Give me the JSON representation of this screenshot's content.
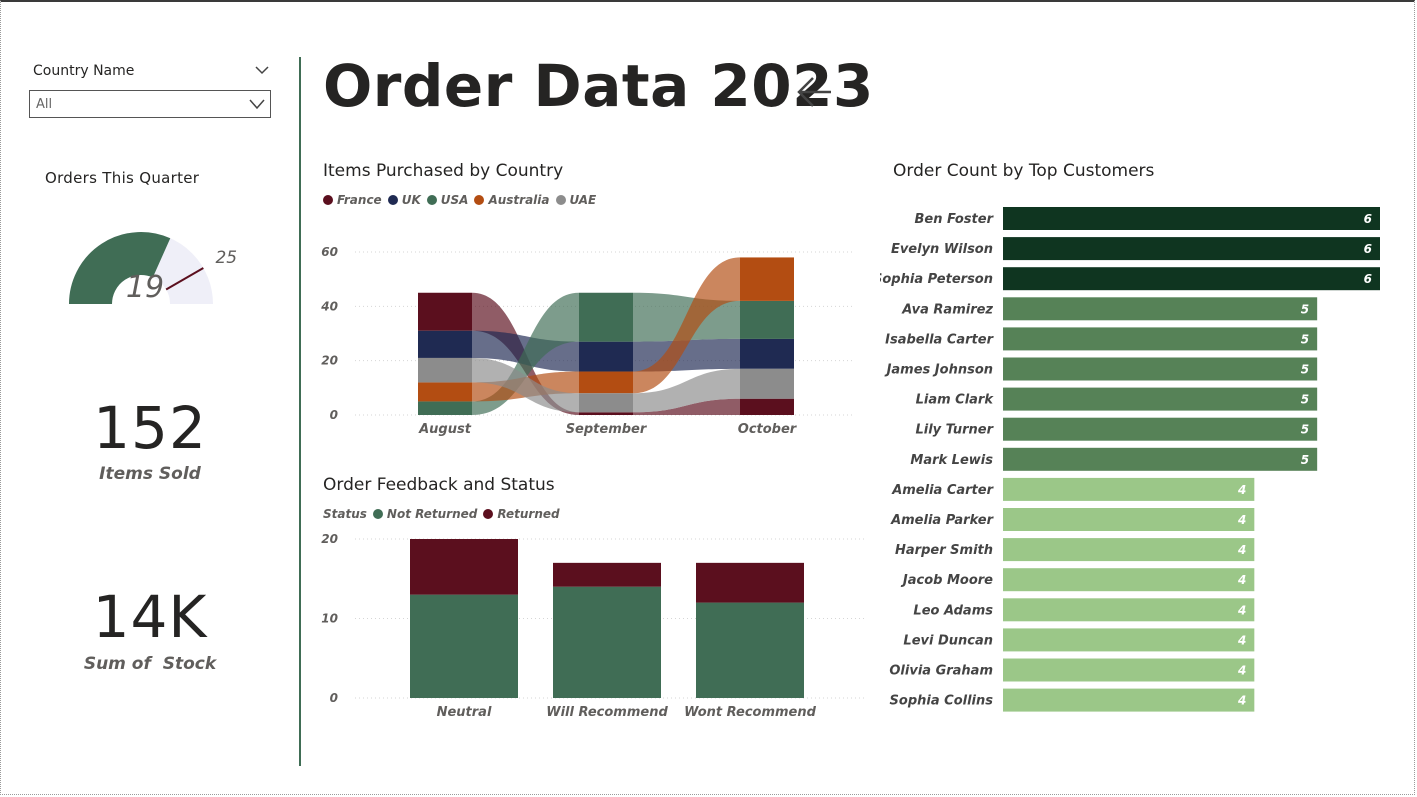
{
  "slicer": {
    "title": "Country Name",
    "value": "All"
  },
  "gauge": {
    "title": "Orders This Quarter",
    "value": 19,
    "target": 25,
    "min": 0,
    "max": 30,
    "value_label": "19",
    "target_label": "25",
    "fill_color": "#406d55",
    "track_color": "#efeff8",
    "target_color": "#5b0f1e"
  },
  "kpis": [
    {
      "value": "152",
      "label": "Items Sold"
    },
    {
      "value": "14K",
      "label": "Sum of  Stock"
    }
  ],
  "header": {
    "title": "Order Data 2023",
    "back_icon": "left-arrow-icon"
  },
  "colors": {
    "France": "#5b0f1e",
    "UK": "#1f2a52",
    "USA": "#406d55",
    "Australia": "#b34d12",
    "UAE": "#8c8c8c",
    "NotReturned": "#406d55",
    "Returned": "#5b0f1e",
    "Top": "#0f3520",
    "Mid": "#568257",
    "Low": "#9bc788"
  },
  "chart_data": [
    {
      "type": "ribbon",
      "title": "Items Purchased by Country",
      "legend_labels": [
        "France",
        "UK",
        "USA",
        "Australia",
        "UAE"
      ],
      "categories": [
        "August",
        "September",
        "October"
      ],
      "y_ticks": [
        "0",
        "20",
        "40",
        "60"
      ],
      "ylim": [
        0,
        60
      ],
      "grid": true,
      "legend_position": "top-left",
      "series": [
        {
          "name": "France",
          "values": [
            14,
            1,
            6
          ]
        },
        {
          "name": "UK",
          "values": [
            10,
            11,
            11
          ]
        },
        {
          "name": "USA",
          "values": [
            5,
            18,
            14
          ]
        },
        {
          "name": "Australia",
          "values": [
            7,
            8,
            16
          ]
        },
        {
          "name": "UAE",
          "values": [
            9,
            7,
            11
          ]
        }
      ]
    },
    {
      "type": "bar",
      "stacked": true,
      "title": "Order Feedback and Status",
      "legend_title": "Status",
      "legend_labels": [
        "Not Returned",
        "Returned"
      ],
      "categories": [
        "Neutral",
        "Will Recommend",
        "Wont Recommend"
      ],
      "y_ticks": [
        "0",
        "10",
        "20"
      ],
      "ylim": [
        0,
        20
      ],
      "grid": true,
      "legend_position": "top-left",
      "series": [
        {
          "name": "Not Returned",
          "values": [
            13,
            14,
            12
          ]
        },
        {
          "name": "Returned",
          "values": [
            7,
            3,
            5
          ]
        }
      ]
    },
    {
      "type": "bar",
      "orientation": "horizontal",
      "title": "Order Count by Top Customers",
      "categories": [
        "Ben Foster",
        "Evelyn Wilson",
        "Sophia Peterson",
        "Ava Ramirez",
        "Isabella Carter",
        "James Johnson",
        "Liam Clark",
        "Lily Turner",
        "Mark Lewis",
        "Amelia Carter",
        "Amelia Parker",
        "Harper Smith",
        "Jacob Moore",
        "Leo Adams",
        "Levi Duncan",
        "Olivia Graham",
        "Sophia Collins"
      ],
      "values": [
        6,
        6,
        6,
        5,
        5,
        5,
        5,
        5,
        5,
        4,
        4,
        4,
        4,
        4,
        4,
        4,
        4
      ],
      "value_labels": [
        "6",
        "6",
        "6",
        "5",
        "5",
        "5",
        "5",
        "5",
        "5",
        "4",
        "4",
        "4",
        "4",
        "4",
        "4",
        "4",
        "4"
      ],
      "xlim": [
        0,
        6
      ]
    }
  ]
}
